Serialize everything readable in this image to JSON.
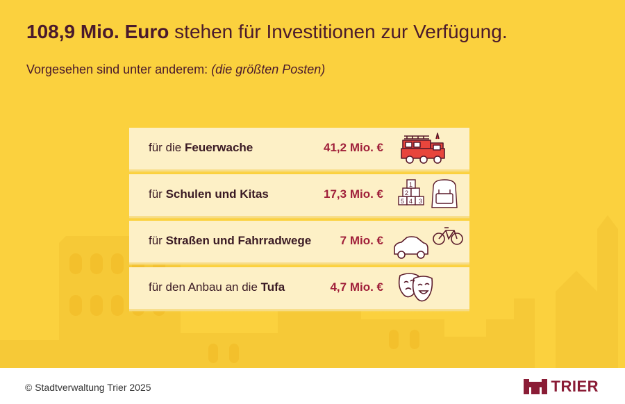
{
  "header": {
    "headline_bold": "108,9 Mio. Euro",
    "headline_rest": " stehen für Investitionen zur Verfügung.",
    "subline_regular": "Vorgesehen sind unter anderem: ",
    "subline_italic": "(die größten Posten)"
  },
  "items": [
    {
      "prefix": "für die ",
      "bold": "Feuerwache",
      "suffix": "",
      "amount": "41,2 Mio. €",
      "icon": "fire-truck-icon"
    },
    {
      "prefix": "für ",
      "bold": "Schulen und Kitas",
      "suffix": "",
      "amount": "17,3 Mio. €",
      "icon": "school-blocks-backpack-icon"
    },
    {
      "prefix": "für ",
      "bold": "Straßen und Fahrradwege",
      "suffix": "",
      "amount": "7 Mio. €",
      "icon": "car-bicycle-icon"
    },
    {
      "prefix": "für den Anbau an die ",
      "bold": "Tufa",
      "suffix": "",
      "amount": "4,7 Mio. €",
      "icon": "theater-masks-icon"
    }
  ],
  "blocks": {
    "b1": "1",
    "b2": "2",
    "b3": "3",
    "b4": "4",
    "b5": "5"
  },
  "footer": {
    "copyright": "© Stadtverwaltung Trier 2025",
    "logo_text": "TRIER"
  },
  "colors": {
    "background": "#fbd13e",
    "text_dark": "#4a1a2c",
    "amount": "#a0203a",
    "row_bg": "#fdf0c6",
    "logo": "#8a1c36"
  }
}
